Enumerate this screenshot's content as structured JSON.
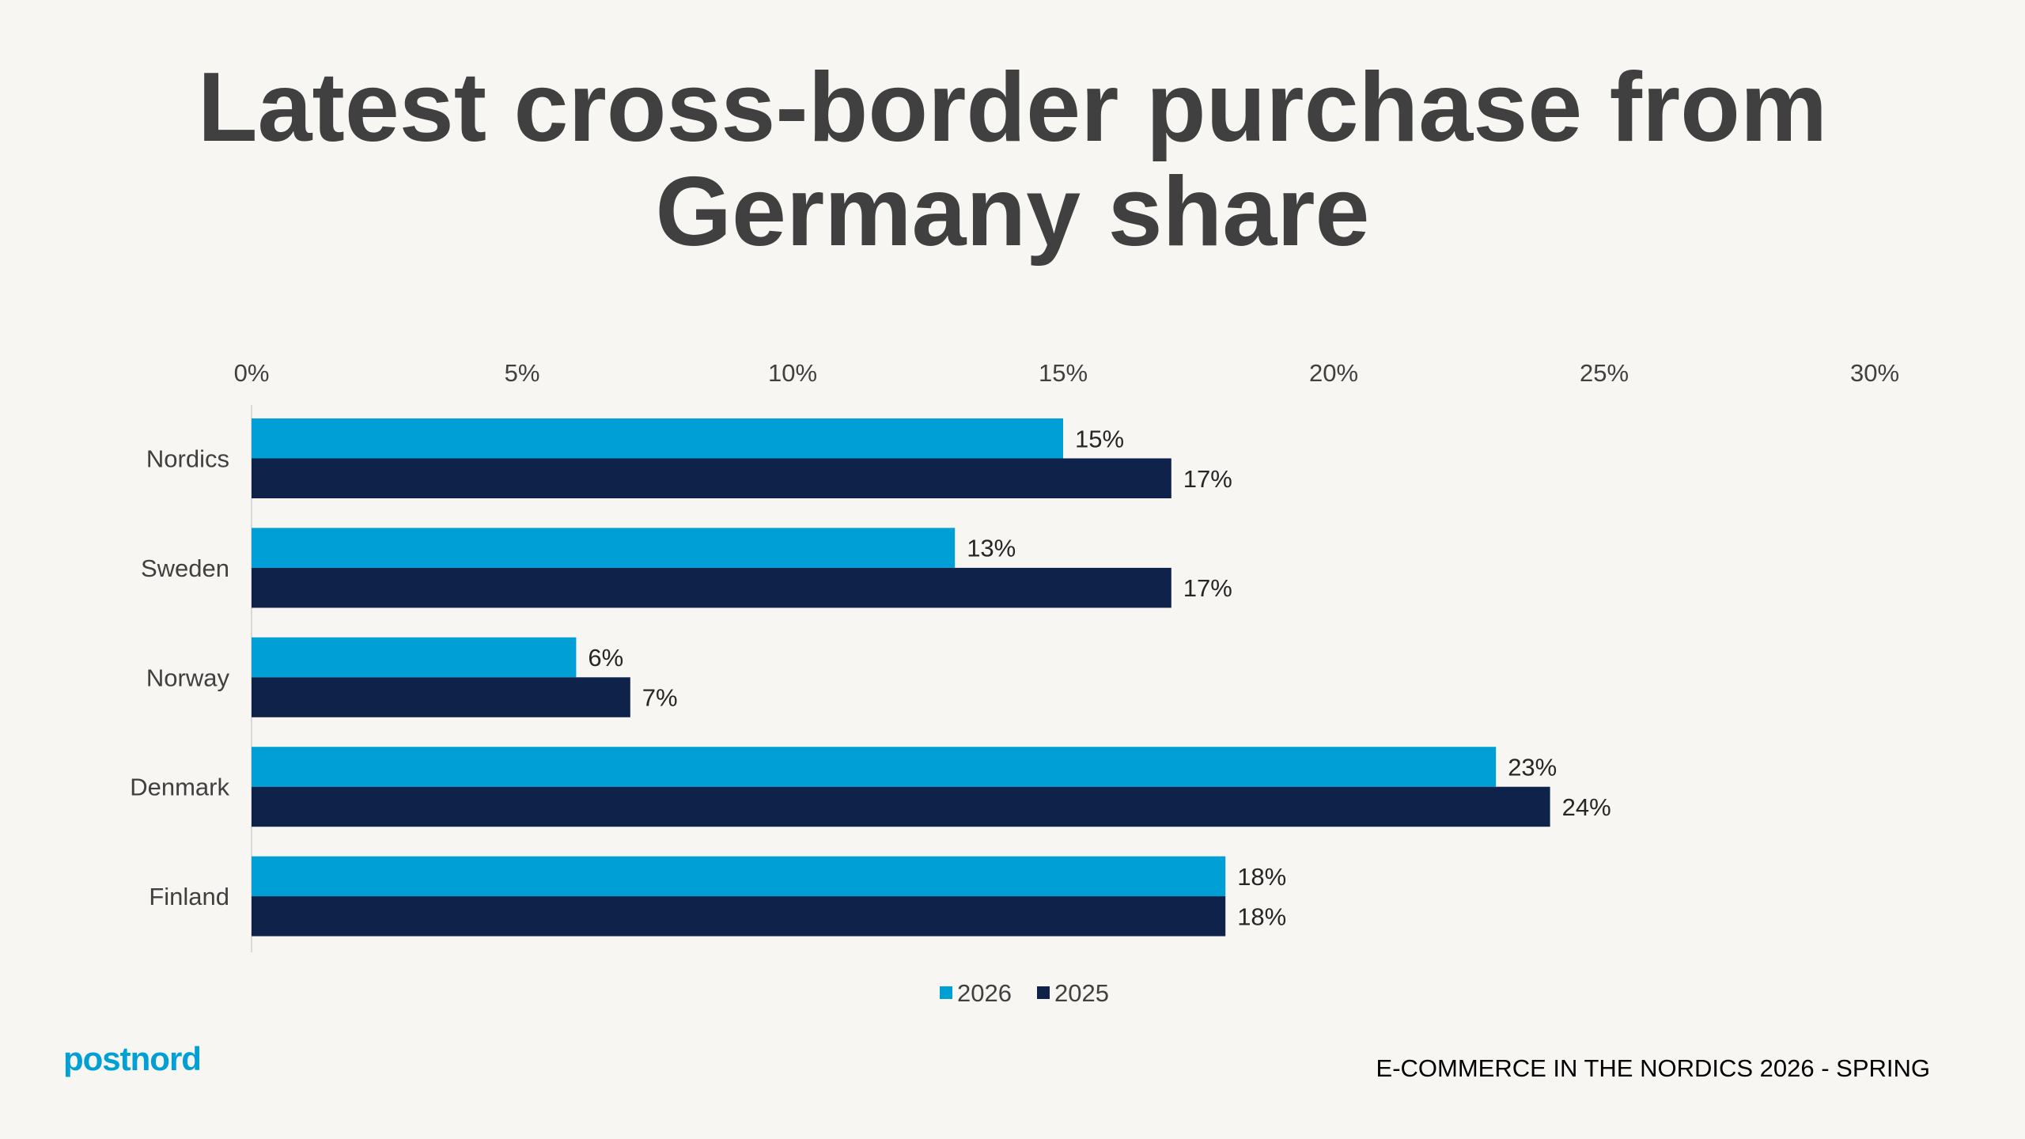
{
  "page": {
    "title_line1": "Latest cross-border purchase from",
    "title_line2": "Germany share",
    "logo_text": "postnord",
    "footer_text": "E-COMMERCE IN THE NORDICS 2026 - SPRING"
  },
  "colors": {
    "series_2026": "#00a0d6",
    "series_2025": "#0f2249",
    "background": "#f7f6f2"
  },
  "chart_data": {
    "type": "bar",
    "orientation": "horizontal",
    "title": "Latest cross-border purchase from Germany share",
    "categories": [
      "Nordics",
      "Sweden",
      "Norway",
      "Denmark",
      "Finland"
    ],
    "series": [
      {
        "name": "2026",
        "values": [
          15,
          13,
          6,
          23,
          18
        ],
        "labels": [
          "15%",
          "13%",
          "6%",
          "23%",
          "18%"
        ]
      },
      {
        "name": "2025",
        "values": [
          17,
          17,
          7,
          24,
          18
        ],
        "labels": [
          "17%",
          "17%",
          "7%",
          "24%",
          "18%"
        ]
      }
    ],
    "xlim": [
      0,
      30
    ],
    "xticks": [
      0,
      5,
      10,
      15,
      20,
      25,
      30
    ],
    "xtick_labels": [
      "0%",
      "5%",
      "10%",
      "15%",
      "20%",
      "25%",
      "30%"
    ],
    "x_axis_position": "top",
    "grid": false,
    "legend_position": "bottom-center"
  }
}
